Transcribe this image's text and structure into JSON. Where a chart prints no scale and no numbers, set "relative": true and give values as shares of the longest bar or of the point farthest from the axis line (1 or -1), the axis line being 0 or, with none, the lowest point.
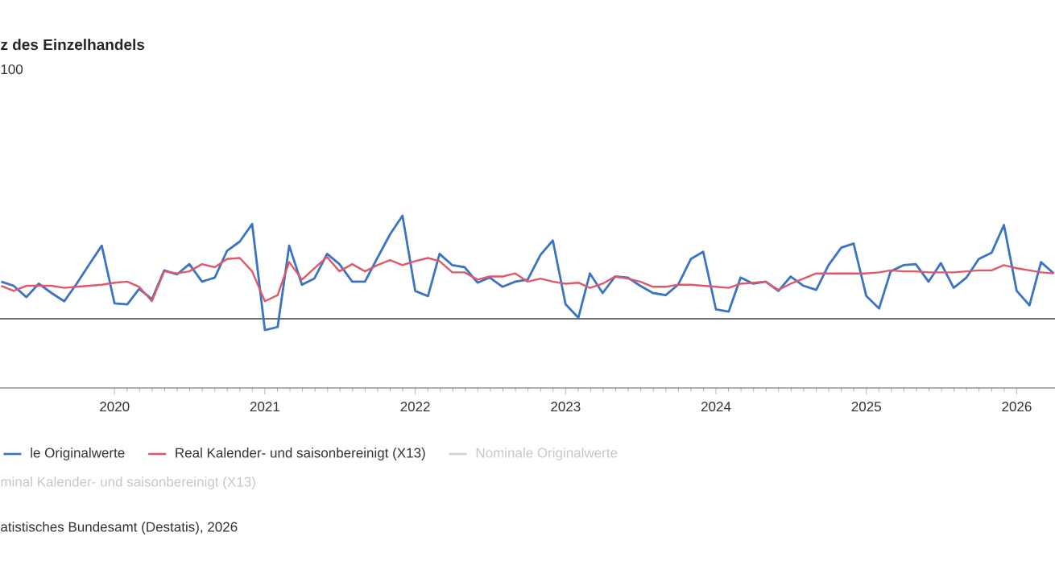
{
  "chart_data": {
    "type": "line",
    "relative": true,
    "title": "z des Einzelhandels",
    "subtitle": "100",
    "x": [
      "2019-04",
      "2019-05",
      "2019-06",
      "2019-07",
      "2019-08",
      "2019-09",
      "2019-10",
      "2019-11",
      "2019-12",
      "2020-01",
      "2020-02",
      "2020-03",
      "2020-04",
      "2020-05",
      "2020-06",
      "2020-07",
      "2020-08",
      "2020-09",
      "2020-10",
      "2020-11",
      "2020-12",
      "2021-01",
      "2021-02",
      "2021-03",
      "2021-04",
      "2021-05",
      "2021-06",
      "2021-07",
      "2021-08",
      "2021-09",
      "2021-10",
      "2021-11",
      "2021-12",
      "2022-01",
      "2022-02",
      "2022-03",
      "2022-04",
      "2022-05",
      "2022-06",
      "2022-07",
      "2022-08",
      "2022-09",
      "2022-10",
      "2022-11",
      "2022-12",
      "2023-01",
      "2023-02",
      "2023-03",
      "2023-04",
      "2023-05",
      "2023-06",
      "2023-07",
      "2023-08",
      "2023-09",
      "2023-10",
      "2023-11",
      "2023-12",
      "2024-01",
      "2024-02",
      "2024-03",
      "2024-04",
      "2024-05",
      "2024-06",
      "2024-07",
      "2024-08",
      "2024-09",
      "2024-10",
      "2024-11",
      "2024-12",
      "2025-01",
      "2025-02",
      "2025-03",
      "2025-04",
      "2025-05",
      "2025-06",
      "2025-07",
      "2025-08",
      "2025-09",
      "2025-10",
      "2025-11",
      "2025-12",
      "2026-01",
      "2026-02",
      "2026-03",
      "2026-04"
    ],
    "series": [
      {
        "name": "le Originalwerte",
        "color": "#3a74c2",
        "values": [
          0.36,
          0.32,
          0.21,
          0.34,
          0.25,
          0.17,
          0.34,
          0.53,
          0.71,
          0.15,
          0.14,
          0.29,
          0.19,
          0.47,
          0.43,
          0.53,
          0.36,
          0.4,
          0.66,
          0.75,
          0.92,
          -0.11,
          -0.08,
          0.71,
          0.33,
          0.39,
          0.63,
          0.53,
          0.36,
          0.36,
          0.59,
          0.82,
          1.0,
          0.27,
          0.22,
          0.63,
          0.52,
          0.5,
          0.35,
          0.4,
          0.31,
          0.36,
          0.38,
          0.62,
          0.76,
          0.14,
          0.01,
          0.44,
          0.25,
          0.41,
          0.4,
          0.32,
          0.25,
          0.23,
          0.33,
          0.58,
          0.65,
          0.09,
          0.07,
          0.4,
          0.34,
          0.36,
          0.27,
          0.41,
          0.32,
          0.28,
          0.52,
          0.69,
          0.73,
          0.22,
          0.1,
          0.46,
          0.52,
          0.53,
          0.36,
          0.54,
          0.3,
          0.4,
          0.58,
          0.64,
          0.91,
          0.27,
          0.13,
          0.55,
          0.44
        ]
      },
      {
        "name": "Real Kalender- und saisonbereinigt (X13)",
        "color": "#e0586a",
        "values": [
          0.32,
          0.27,
          0.32,
          0.32,
          0.32,
          0.3,
          0.31,
          0.32,
          0.33,
          0.35,
          0.36,
          0.31,
          0.17,
          0.46,
          0.44,
          0.46,
          0.53,
          0.5,
          0.58,
          0.59,
          0.46,
          0.17,
          0.23,
          0.55,
          0.38,
          0.49,
          0.6,
          0.46,
          0.53,
          0.46,
          0.52,
          0.57,
          0.52,
          0.56,
          0.59,
          0.56,
          0.45,
          0.45,
          0.38,
          0.41,
          0.41,
          0.44,
          0.36,
          0.39,
          0.36,
          0.34,
          0.35,
          0.3,
          0.34,
          0.41,
          0.39,
          0.36,
          0.31,
          0.31,
          0.33,
          0.33,
          0.32,
          0.31,
          0.3,
          0.34,
          0.35,
          0.36,
          0.28,
          0.34,
          0.39,
          0.44,
          0.44,
          0.44,
          0.44,
          0.44,
          0.45,
          0.47,
          0.46,
          0.46,
          0.45,
          0.45,
          0.45,
          0.46,
          0.47,
          0.47,
          0.52,
          0.49,
          0.47,
          0.45,
          0.44
        ]
      }
    ],
    "xlim": [
      "2019-03-29",
      "2026-04-04"
    ],
    "xticks": [
      "2020",
      "2021",
      "2022",
      "2023",
      "2024",
      "2025",
      "2026"
    ],
    "legend": "bottom",
    "annotations": [
      "Nominale Originalwerte",
      "minal Kalender- und saisonbereinigt (X13)",
      "atistisches Bundesamt (Destatis), 2026"
    ]
  }
}
